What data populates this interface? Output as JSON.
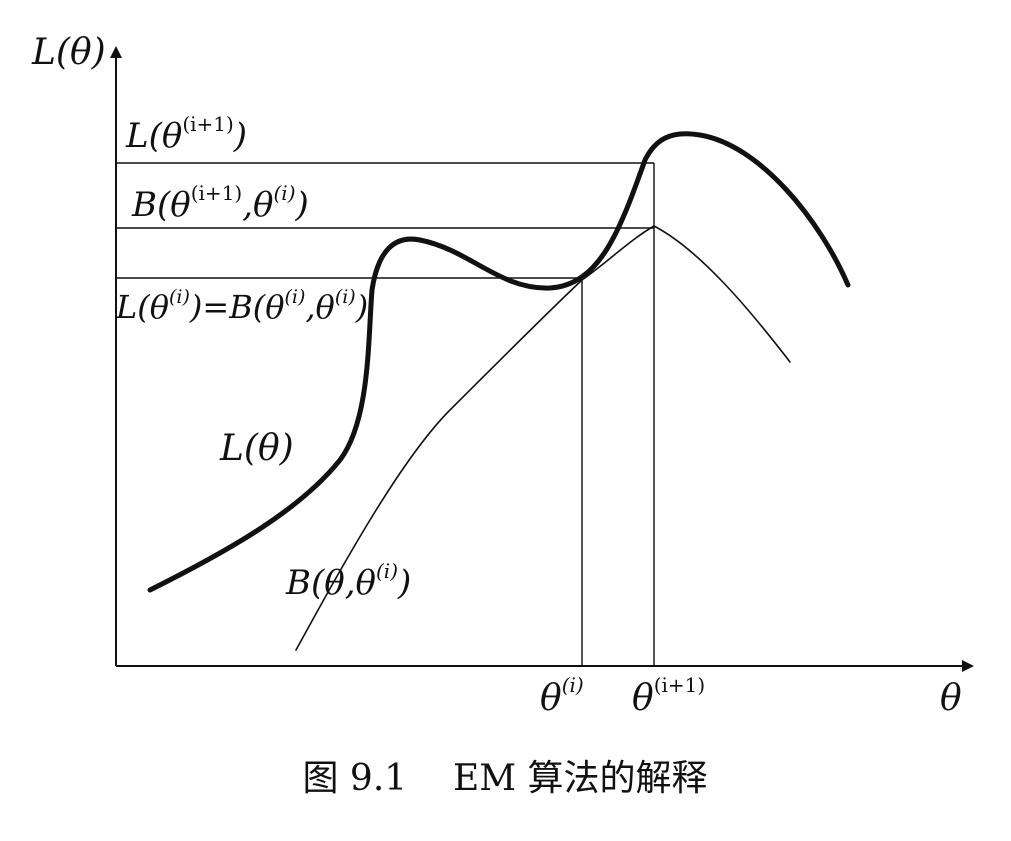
{
  "labels": {
    "y_axis": "L(θ)",
    "x_axis": "θ",
    "l_next": [
      "L(θ",
      "(i+1)",
      ")"
    ],
    "b_next": [
      "B(θ",
      "(i+1)",
      ",θ",
      "(i)",
      ")"
    ],
    "l_equal_b": [
      "L(θ",
      "(i)",
      ")=B(θ",
      "(i)",
      ",θ",
      "(i)",
      ")"
    ],
    "curve_l": "L(θ)",
    "curve_b": [
      "B(θ,θ",
      "(i)",
      ")"
    ],
    "theta_i": [
      "θ",
      "(i)"
    ],
    "theta_next": [
      "θ",
      "(i+1)"
    ]
  },
  "caption": "图 9.1    EM 算法的解释"
}
